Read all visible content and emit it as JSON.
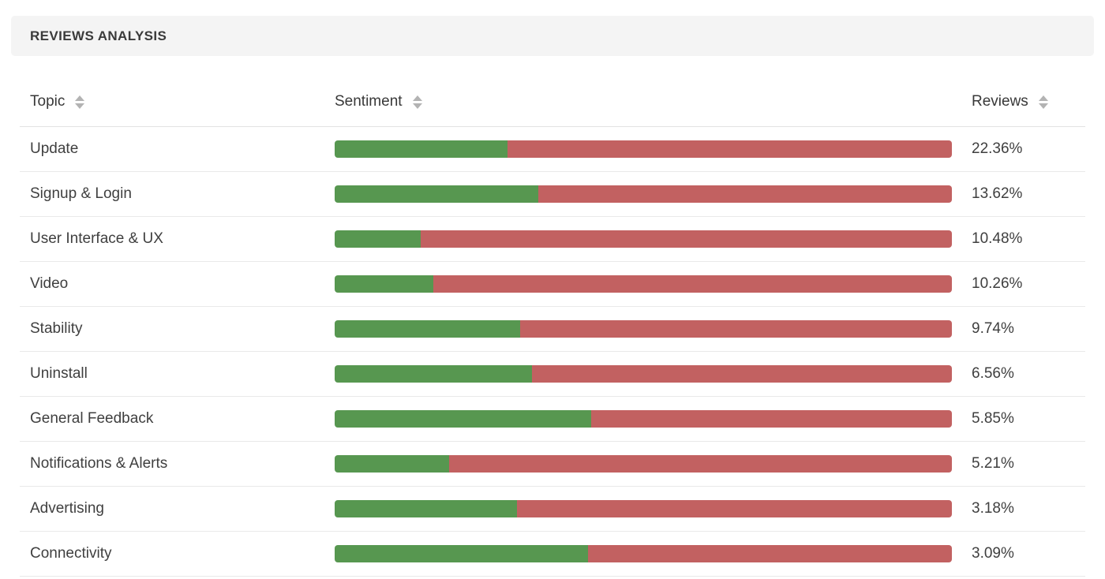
{
  "panel": {
    "title": "REVIEWS ANALYSIS"
  },
  "colors": {
    "positive": "#579750",
    "negative": "#c26161",
    "title_bar_bg": "#f4f4f4",
    "sort_icon": "#b3b3b3"
  },
  "table": {
    "columns": [
      {
        "label": "Topic",
        "sortable": true
      },
      {
        "label": "Sentiment",
        "sortable": true
      },
      {
        "label": "Reviews",
        "sortable": true
      }
    ],
    "rows": [
      {
        "topic": "Update",
        "positive_pct": 28,
        "negative_pct": 72,
        "reviews": "22.36%"
      },
      {
        "topic": "Signup & Login",
        "positive_pct": 33,
        "negative_pct": 67,
        "reviews": "13.62%"
      },
      {
        "topic": "User Interface & UX",
        "positive_pct": 14,
        "negative_pct": 86,
        "reviews": "10.48%"
      },
      {
        "topic": "Video",
        "positive_pct": 16,
        "negative_pct": 84,
        "reviews": "10.26%"
      },
      {
        "topic": "Stability",
        "positive_pct": 30,
        "negative_pct": 70,
        "reviews": "9.74%"
      },
      {
        "topic": "Uninstall",
        "positive_pct": 32,
        "negative_pct": 68,
        "reviews": "6.56%"
      },
      {
        "topic": "General Feedback",
        "positive_pct": 41.5,
        "negative_pct": 58.5,
        "reviews": "5.85%"
      },
      {
        "topic": "Notifications & Alerts",
        "positive_pct": 18.5,
        "negative_pct": 81.5,
        "reviews": "5.21%"
      },
      {
        "topic": "Advertising",
        "positive_pct": 29.5,
        "negative_pct": 70.5,
        "reviews": "3.18%"
      },
      {
        "topic": "Connectivity",
        "positive_pct": 41,
        "negative_pct": 59,
        "reviews": "3.09%"
      }
    ]
  },
  "chart_data": {
    "type": "bar",
    "subtype": "stacked-horizontal-sentiment",
    "title": "REVIEWS ANALYSIS",
    "categories": [
      "Update",
      "Signup & Login",
      "User Interface & UX",
      "Video",
      "Stability",
      "Uninstall",
      "General Feedback",
      "Notifications & Alerts",
      "Advertising",
      "Connectivity"
    ],
    "series": [
      {
        "name": "positive",
        "values": [
          28,
          33,
          14,
          16,
          30,
          32,
          41.5,
          18.5,
          29.5,
          41
        ]
      },
      {
        "name": "negative",
        "values": [
          72,
          67,
          86,
          84,
          70,
          68,
          58.5,
          81.5,
          70.5,
          59
        ]
      }
    ],
    "reviews_share_pct": [
      22.36,
      13.62,
      10.48,
      10.26,
      9.74,
      6.56,
      5.85,
      5.21,
      3.18,
      3.09
    ],
    "xlim": [
      0,
      100
    ],
    "legend": "none",
    "grid": false
  }
}
